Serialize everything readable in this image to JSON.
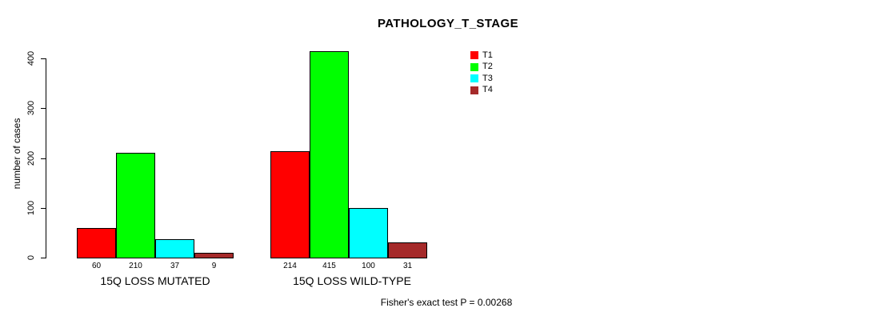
{
  "chart_data": {
    "type": "bar",
    "title": "PATHOLOGY_T_STAGE",
    "xlabel": "",
    "ylabel": "number of cases",
    "ylim": [
      0,
      400
    ],
    "yticks": [
      0,
      100,
      200,
      300,
      400
    ],
    "grid": false,
    "legend_position": "top-right",
    "bar_value_labels": true,
    "categories": [
      "15Q LOSS MUTATED",
      "15Q LOSS WILD-TYPE"
    ],
    "series": [
      {
        "name": "T1",
        "color": "#ff0000",
        "values": [
          60,
          214
        ]
      },
      {
        "name": "T2",
        "color": "#00ff00",
        "values": [
          210,
          415
        ]
      },
      {
        "name": "T3",
        "color": "#00ffff",
        "values": [
          37,
          100
        ]
      },
      {
        "name": "T4",
        "color": "#a52a2a",
        "values": [
          9,
          31
        ]
      }
    ]
  },
  "footer": {
    "stat_text": "Fisher's exact test P = 0.00268"
  }
}
